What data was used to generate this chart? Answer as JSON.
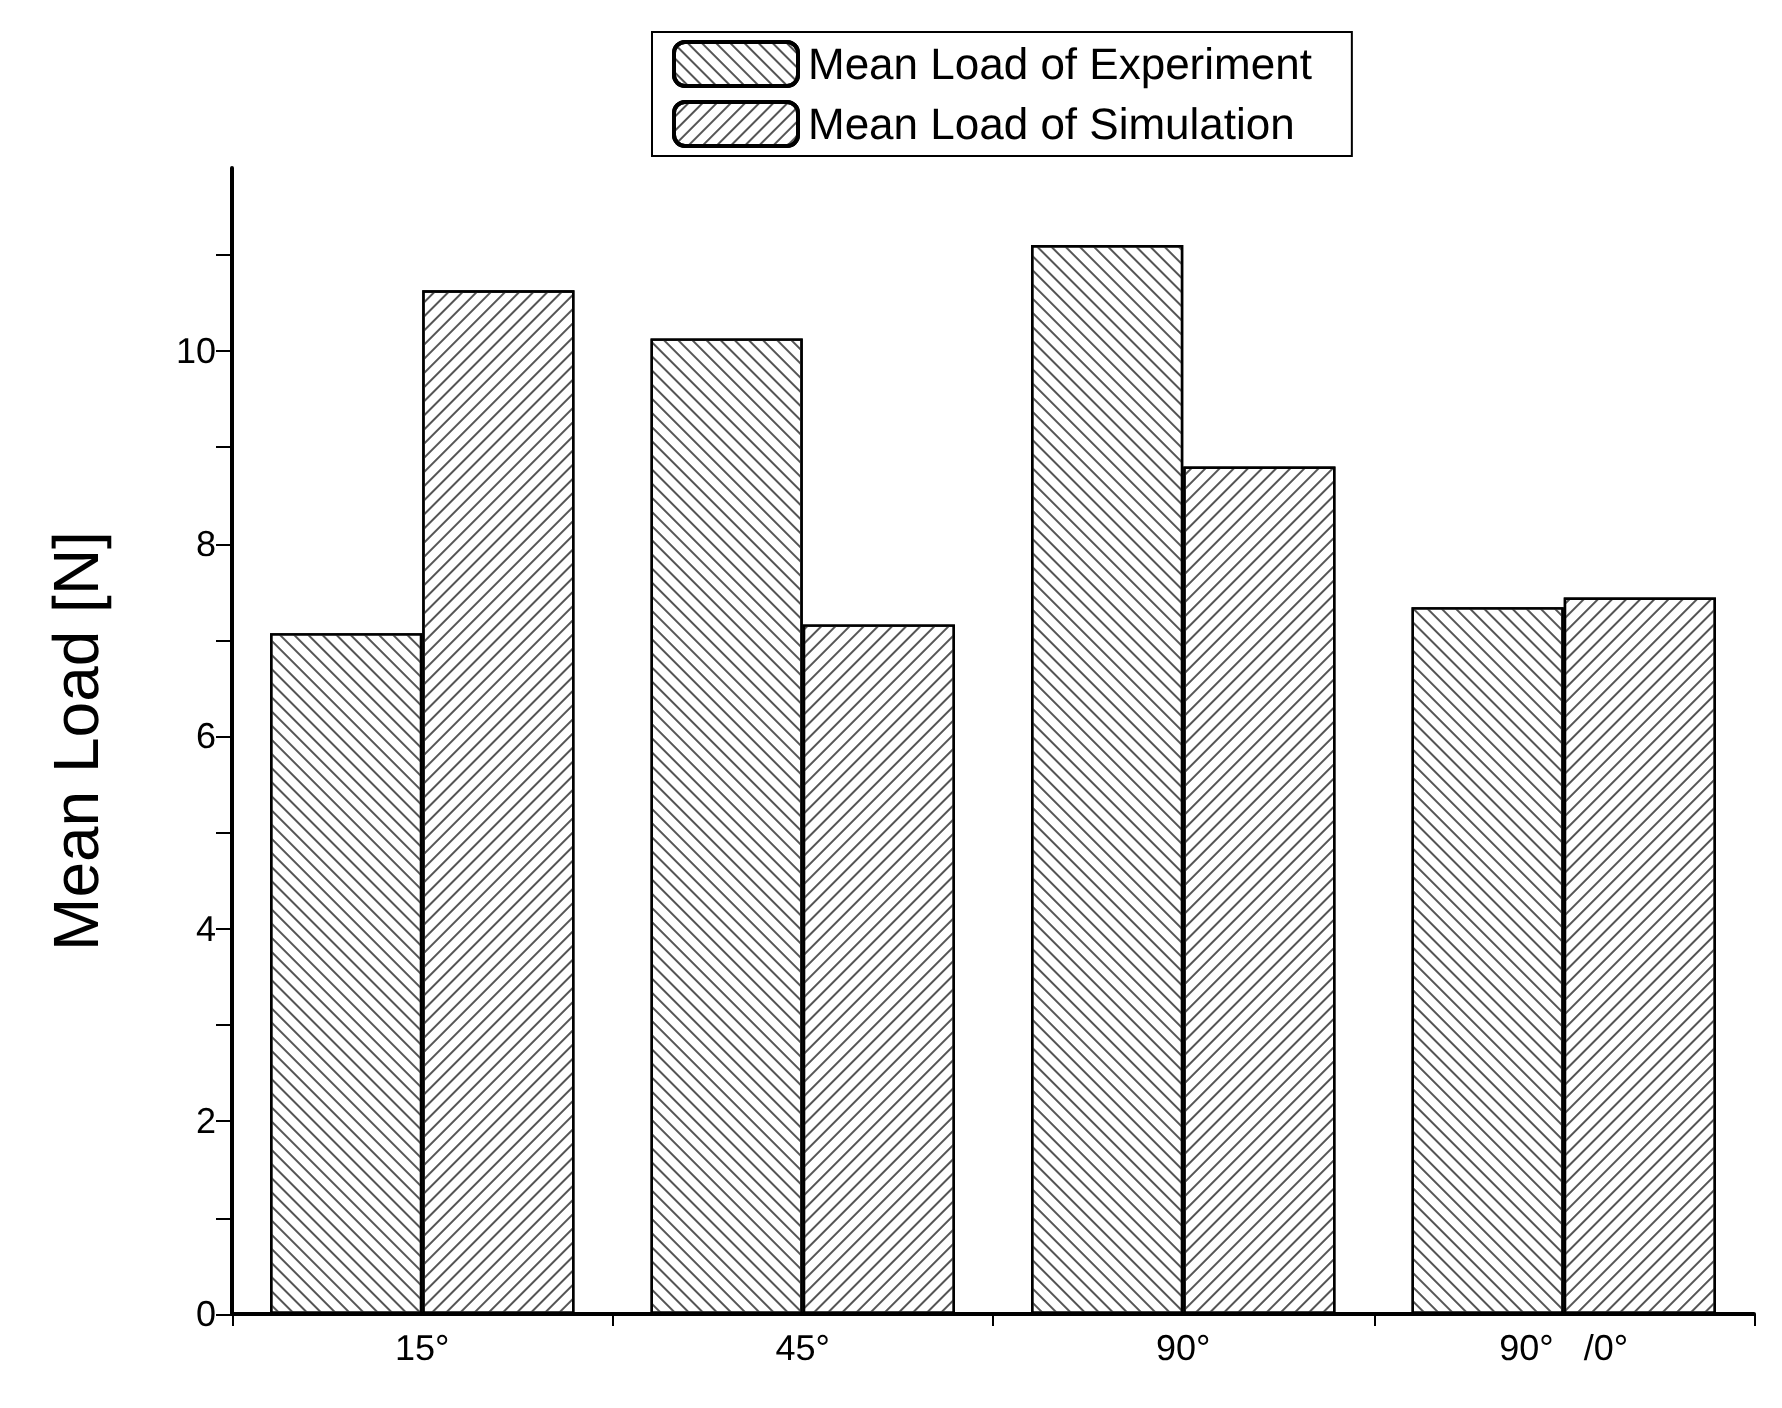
{
  "chart_data": {
    "type": "bar",
    "ylabel": "Mean Load [N]",
    "categories": [
      "15°",
      "45°",
      "90°",
      "90°   /0°"
    ],
    "series": [
      {
        "name": "Mean Load of Experiment",
        "color": "#ffffff",
        "values": [
          7.07,
          10.13,
          11.1,
          7.34
        ]
      },
      {
        "name": "Mean Load of Simulation",
        "color": "#ffffff",
        "values": [
          10.63,
          7.16,
          8.8,
          7.44
        ]
      }
    ],
    "ylim": [
      0,
      11.9
    ],
    "yticks": [
      0,
      {
        "value": 1,
        "label": null
      },
      2,
      {
        "value": 3,
        "label": null
      },
      4,
      {
        "value": 5,
        "label": null
      },
      6,
      {
        "value": 7,
        "label": null
      },
      8,
      {
        "value": 9,
        "label": null
      },
      10,
      {
        "value": 11,
        "label": null
      }
    ],
    "grid": false,
    "legend": "top"
  }
}
